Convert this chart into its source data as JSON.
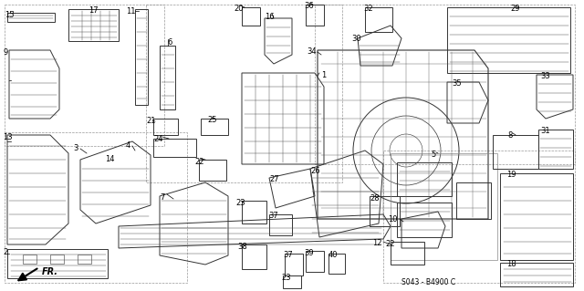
{
  "bg_color": "#ffffff",
  "diagram_code": "S043 - B4900 C",
  "line_color": "#333333",
  "label_fontsize": 6.0,
  "fig_width": 6.4,
  "fig_height": 3.19,
  "dpi": 100
}
